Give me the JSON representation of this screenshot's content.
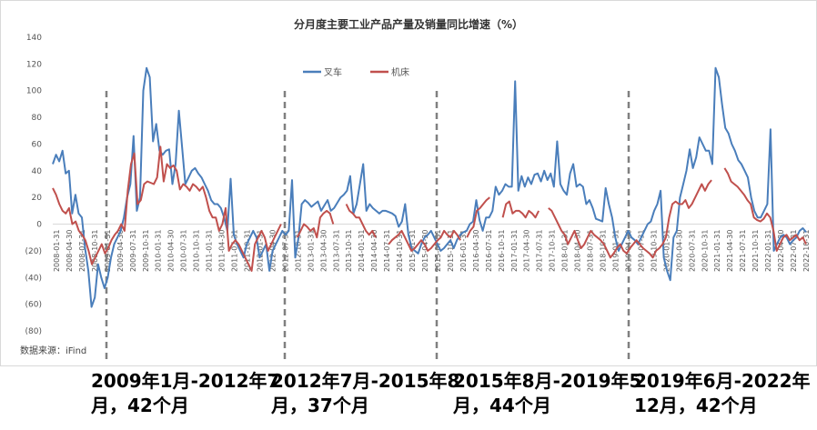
{
  "chart_data": {
    "type": "line",
    "title": "分月度主要工业产品产量及销量同比增速（%）",
    "xlabel": "",
    "ylabel": "",
    "ylim": [
      -80,
      140
    ],
    "yticks": [
      140,
      120,
      100,
      80,
      60,
      40,
      20,
      0,
      -20,
      -40,
      -60,
      -80
    ],
    "ytick_labels": [
      "140",
      "120",
      "100",
      "80",
      "60",
      "40",
      "20",
      "0",
      "(20)",
      "(40)",
      "(60)",
      "(80)"
    ],
    "x_tick_labels": [
      "2008-01-31",
      "2008-04-30",
      "2008-07-31",
      "2008-10-31",
      "2009-01-31",
      "2009-04-30",
      "2009-07-31",
      "2009-10-31",
      "2010-01-31",
      "2010-04-30",
      "2010-07-31",
      "2010-10-31",
      "2011-01-31",
      "2011-04-30",
      "2011-07-31",
      "2011-10-31",
      "2012-01-31",
      "2012-04-30",
      "2012-07-31",
      "2012-10-31",
      "2013-01-31",
      "2013-04-30",
      "2013-07-31",
      "2013-10-31",
      "2014-01-31",
      "2014-04-30",
      "2014-07-31",
      "2014-10-31",
      "2015-01-31",
      "2015-04-30",
      "2015-07-31",
      "2015-10-31",
      "2016-01-31",
      "2016-04-30",
      "2016-07-31",
      "2016-10-31",
      "2017-01-31",
      "2017-04-30",
      "2017-07-31",
      "2017-10-31",
      "2018-01-31",
      "2018-04-30",
      "2018-07-31",
      "2018-10-31",
      "2019-01-31",
      "2019-04-30",
      "2019-07-31",
      "2019-10-31",
      "2020-01-31",
      "2020-04-30",
      "2020-07-31",
      "2020-10-31",
      "2021-01-31",
      "2021-04-30",
      "2021-07-31",
      "2021-10-31",
      "2022-01-31",
      "2022-04-30",
      "2022-07-31",
      "2022-10-31"
    ],
    "legend_position": "top-center",
    "grid": false,
    "series": [
      {
        "name": "叉车",
        "color": "#4a7ebb",
        "values": [
          45,
          52,
          47,
          55,
          38,
          40,
          8,
          22,
          8,
          5,
          -18,
          -35,
          -62,
          -55,
          -30,
          -40,
          -48,
          -40,
          -25,
          -15,
          -10,
          -5,
          5,
          20,
          30,
          66,
          10,
          20,
          100,
          117,
          110,
          62,
          75,
          55,
          52,
          55,
          56,
          30,
          45,
          85,
          58,
          30,
          35,
          40,
          42,
          38,
          35,
          30,
          25,
          18,
          15,
          15,
          12,
          5,
          -5,
          34,
          -8,
          -15,
          -20,
          -25,
          -15,
          -10,
          -5,
          -10,
          -25,
          -20,
          -15,
          -35,
          -20,
          -15,
          -10,
          -5,
          -8,
          -5,
          33,
          -25,
          -10,
          15,
          18,
          16,
          13,
          15,
          17,
          10,
          14,
          18,
          10,
          12,
          16,
          20,
          22,
          25,
          36,
          8,
          15,
          30,
          45,
          10,
          15,
          12,
          10,
          8,
          10,
          10,
          9,
          8,
          6,
          -2,
          2,
          15,
          -8,
          -18,
          -20,
          -22,
          -15,
          -10,
          -8,
          -5,
          -10,
          -15,
          -20,
          -18,
          -15,
          -12,
          -18,
          -12,
          -8,
          -6,
          -5,
          0,
          2,
          18,
          3,
          -5,
          5,
          5,
          10,
          28,
          22,
          25,
          30,
          28,
          28,
          107,
          25,
          36,
          28,
          35,
          30,
          37,
          38,
          32,
          40,
          33,
          38,
          28,
          62,
          30,
          25,
          22,
          38,
          45,
          28,
          30,
          28,
          15,
          18,
          12,
          4,
          3,
          2,
          27,
          15,
          5,
          -10,
          -20,
          -15,
          -10,
          -5,
          -10,
          -12,
          -15,
          -10,
          -5,
          0,
          2,
          10,
          15,
          25,
          -25,
          -35,
          -42,
          -10,
          -5,
          20,
          30,
          40,
          56,
          42,
          50,
          65,
          60,
          55,
          55,
          45,
          117,
          110,
          90,
          72,
          68,
          60,
          55,
          48,
          45,
          40,
          35,
          20,
          10,
          5,
          5,
          10,
          15,
          71,
          -20,
          -15,
          -10,
          -8,
          -10,
          -15,
          -12,
          -10,
          -5,
          -3,
          -6
        ],
        "gaps": []
      },
      {
        "name": "机床",
        "color": "#c0504d",
        "values": [
          27,
          22,
          15,
          10,
          8,
          12,
          0,
          2,
          -5,
          -8,
          -12,
          -20,
          -30,
          -25,
          -20,
          -15,
          -22,
          -18,
          -12,
          -8,
          -5,
          0,
          -5,
          25,
          45,
          53,
          15,
          18,
          30,
          32,
          31,
          30,
          35,
          58,
          32,
          45,
          42,
          44,
          40,
          26,
          30,
          28,
          25,
          30,
          28,
          25,
          28,
          20,
          10,
          5,
          5,
          -5,
          0,
          12,
          -20,
          -15,
          -12,
          -15,
          -20,
          -25,
          -30,
          -35,
          -15,
          -10,
          -5,
          -10,
          -20,
          -15,
          -10,
          -5,
          0,
          null,
          null,
          null,
          null,
          -10,
          -5,
          0,
          -2,
          -5,
          -3,
          -10,
          5,
          8,
          10,
          8,
          0,
          null,
          null,
          null,
          15,
          10,
          8,
          5,
          5,
          0,
          -5,
          -8,
          -5,
          -10,
          null,
          null,
          null,
          -15,
          -12,
          -10,
          -8,
          -5,
          -10,
          -15,
          -20,
          -18,
          -15,
          -12,
          -15,
          -20,
          -18,
          -15,
          -12,
          -10,
          -5,
          -8,
          -10,
          -5,
          -8,
          -12,
          null,
          -10,
          -5,
          -2,
          10,
          12,
          15,
          18,
          20,
          null,
          null,
          null,
          5,
          15,
          17,
          8,
          10,
          10,
          8,
          5,
          10,
          8,
          5,
          10,
          null,
          null,
          12,
          10,
          5,
          0,
          -5,
          -8,
          -15,
          -10,
          -5,
          -12,
          -18,
          -15,
          -10,
          -5,
          -8,
          -10,
          -12,
          -15,
          -20,
          -25,
          -22,
          -18,
          -15,
          -20,
          -22,
          -18,
          -15,
          -12,
          -15,
          -18,
          -20,
          -22,
          -25,
          -20,
          -18,
          -15,
          -10,
          5,
          15,
          17,
          15,
          15,
          18,
          12,
          15,
          20,
          25,
          30,
          25,
          30,
          33,
          null,
          null,
          null,
          42,
          38,
          32,
          30,
          28,
          25,
          22,
          18,
          15,
          5,
          3,
          2,
          4,
          8,
          5,
          -5,
          -20,
          -15,
          -10,
          -8,
          -12,
          -10,
          -8,
          -12,
          -10,
          -15
        ]
      }
    ]
  },
  "periods": [
    {
      "label": "2009年1月-2012年7\n月，42个月"
    },
    {
      "label": "2012年7月-2015年8\n月，37个月"
    },
    {
      "label": "2015年8月-2019年5\n月，44个月"
    },
    {
      "label": "2019年6月-2022年\n12月，42个月"
    }
  ],
  "source_note": "数据来源：iFind"
}
